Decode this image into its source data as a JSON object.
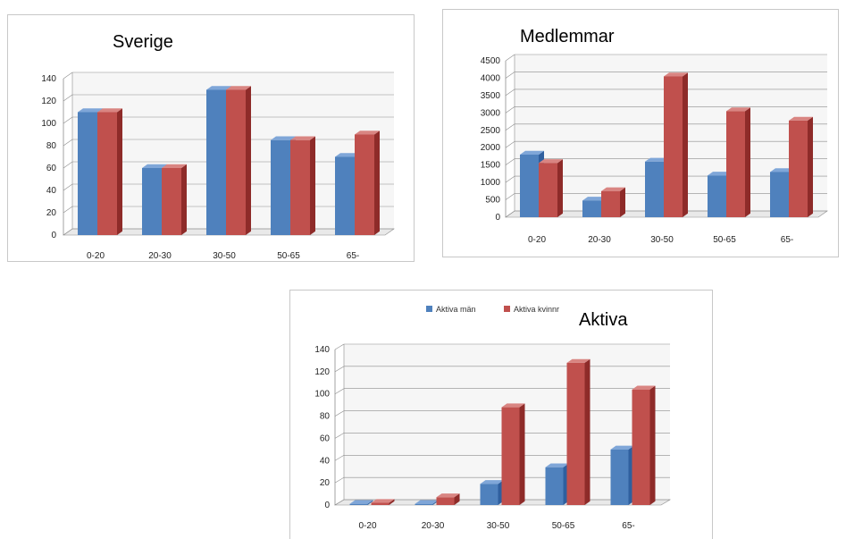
{
  "colors": {
    "man_front": "#4f81bd",
    "man_side": "#2f5f9e",
    "man_top": "#7fa6d8",
    "kvinn_front": "#c0504d",
    "kvinn_side": "#8e2b29",
    "kvinn_top": "#d98582",
    "grid": "#8c8c8c",
    "wall": "#f6f6f6"
  },
  "chart_data": [
    {
      "type": "bar",
      "title": "Sverige",
      "categories": [
        "0-20",
        "20-30",
        "30-50",
        "50-65",
        "65-"
      ],
      "series": [
        {
          "values": [
            110,
            60,
            130,
            85,
            70
          ]
        },
        {
          "values": [
            110,
            60,
            130,
            85,
            90
          ]
        }
      ],
      "ylim": [
        0,
        140
      ],
      "yticks": [
        0,
        20,
        40,
        60,
        80,
        100,
        120,
        140
      ],
      "yticks_label": [
        "0",
        "20",
        "40",
        "60",
        "80",
        "100",
        "120",
        "140"
      ],
      "grid": true,
      "legend": false
    },
    {
      "type": "bar",
      "title": "Medlemmar",
      "categories": [
        "0-20",
        "20-30",
        "30-50",
        "50-65",
        "65-"
      ],
      "series": [
        {
          "values": [
            1800,
            480,
            1600,
            1200,
            1300
          ]
        },
        {
          "values": [
            1560,
            750,
            4050,
            3050,
            2780
          ]
        }
      ],
      "ylim": [
        0,
        4500
      ],
      "yticks": [
        0,
        500,
        1000,
        1500,
        2000,
        2500,
        3000,
        3500,
        4000,
        4500
      ],
      "yticks_label": [
        "0",
        "500",
        "1000",
        "1500",
        "2000",
        "2500",
        "3000",
        "3500",
        "4000",
        "4500"
      ],
      "grid": true,
      "legend": false
    },
    {
      "type": "bar",
      "title": "Aktiva",
      "categories": [
        "0-20",
        "20-30",
        "30-50",
        "50-65",
        "65-"
      ],
      "series": [
        {
          "name": "Aktiva män",
          "values": [
            1,
            1,
            19,
            34,
            50
          ]
        },
        {
          "name": "Aktiva kvinnr",
          "values": [
            2,
            7,
            88,
            128,
            104
          ]
        }
      ],
      "ylim": [
        0,
        140
      ],
      "yticks": [
        0,
        20,
        40,
        60,
        80,
        100,
        120,
        140
      ],
      "yticks_label": [
        "0",
        "20",
        "40",
        "60",
        "80",
        "100",
        "120",
        "140"
      ],
      "grid": true,
      "legend": "top-center"
    }
  ]
}
